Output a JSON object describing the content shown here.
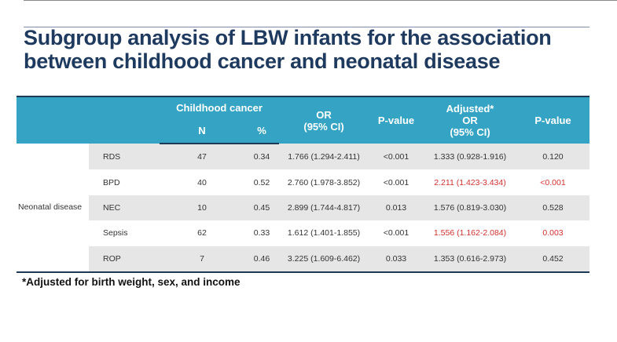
{
  "title": "Subgroup analysis of LBW infants for the association between childhood cancer and neonatal disease",
  "table": {
    "header": {
      "childhood_cancer": "Childhood cancer",
      "n": "N",
      "pct": "%",
      "or_line1": "OR",
      "or_line2": "(95% CI)",
      "pvalue": "P-value",
      "adj_line1": "Adjusted*",
      "adj_line2": "OR",
      "adj_line3": "(95% CI)",
      "pvalue2": "P-value"
    },
    "group_label": "Neonatal disease",
    "rows": [
      {
        "name": "RDS",
        "n": "47",
        "pct": "0.34",
        "or": "1.766 (1.294-2.411)",
        "p": "<0.001",
        "adj_or": "1.333 (0.928-1.916)",
        "adj_p": "0.120"
      },
      {
        "name": "BPD",
        "n": "40",
        "pct": "0.52",
        "or": "2.760 (1.978-3.852)",
        "p": "<0.001",
        "adj_or": "2.211 (1.423-3.434)",
        "adj_p": "<0.001"
      },
      {
        "name": "NEC",
        "n": "10",
        "pct": "0.45",
        "or": "2.899 (1.744-4.817)",
        "p": "0.013",
        "adj_or": "1.576 (0.819-3.030)",
        "adj_p": "0.528"
      },
      {
        "name": "Sepsis",
        "n": "62",
        "pct": "0.33",
        "or": "1.612 (1.401-1.855)",
        "p": "<0.001",
        "adj_or": "1.556 (1.162-2.084)",
        "adj_p": "0.003"
      },
      {
        "name": "ROP",
        "n": "7",
        "pct": "0.46",
        "or": "3.225 (1.609-6.462)",
        "p": "0.033",
        "adj_or": "1.353 (0.616-2.973)",
        "adj_p": "0.452"
      }
    ],
    "colors": {
      "header_bg": "#35a4c4",
      "significant": "#d0312d",
      "stripe": "#e6e6e6"
    }
  },
  "footnote": "*Adjusted for birth weight, sex, and income"
}
